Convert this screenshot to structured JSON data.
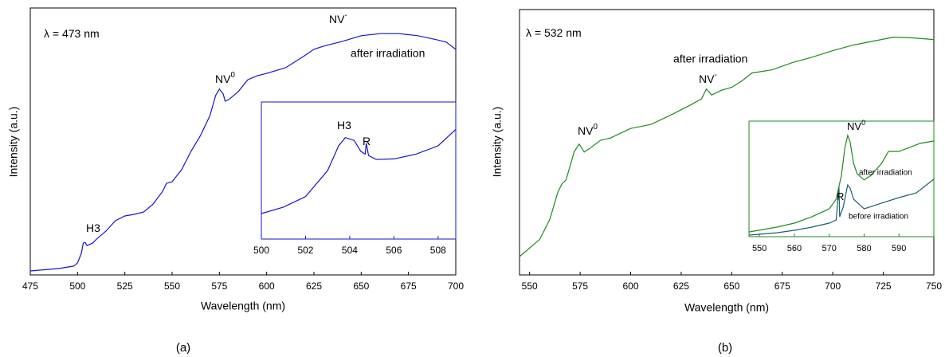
{
  "chart_data": [
    {
      "type": "line",
      "caption": "(a)",
      "x_label": "Wavelength (nm)",
      "y_label": "Intensity (a.u.)",
      "xlim": [
        475,
        700
      ],
      "ylim": [
        0,
        100
      ],
      "xticks": [
        475,
        500,
        525,
        550,
        575,
        600,
        625,
        650,
        675,
        700
      ],
      "annotations": [
        {
          "text": "λ = 473 nm",
          "color": "#1515d0"
        },
        {
          "text": "NV",
          "sup": "-"
        },
        {
          "text": "NV",
          "sup": "0"
        },
        {
          "text": "H3"
        }
      ],
      "series": [
        {
          "name": "after irradiation",
          "color": "#1515d0",
          "x": [
            475,
            490,
            498,
            500,
            502,
            503,
            504,
            505,
            506,
            508,
            510,
            515,
            520,
            525,
            530,
            535,
            540,
            545,
            547,
            550,
            555,
            560,
            565,
            570,
            573,
            575,
            577,
            578,
            580,
            585,
            590,
            595,
            600,
            610,
            620,
            625,
            630,
            640,
            650,
            660,
            670,
            680,
            690,
            695,
            700
          ],
          "values": [
            1.5,
            2.4,
            3.3,
            4.5,
            8.1,
            11.9,
            12.2,
            11.0,
            11.3,
            11.9,
            13.4,
            16.4,
            20.3,
            22.1,
            22.7,
            23.6,
            26.6,
            31.3,
            34.3,
            34.9,
            39.4,
            46.3,
            52.2,
            59.7,
            67.2,
            69.6,
            67.8,
            65.1,
            65.7,
            68.7,
            73.1,
            74.6,
            75.5,
            77.6,
            82.1,
            84.5,
            85.7,
            87.5,
            89.6,
            90.4,
            90.4,
            89.6,
            88.1,
            87.2,
            84.5
          ]
        }
      ]
    },
    {
      "type": "line",
      "color": "#1515d0",
      "xlim": [
        500,
        508.8
      ],
      "ylim": [
        0,
        100
      ],
      "xticks": [
        500,
        502,
        504,
        506,
        508
      ],
      "annotations": [
        {
          "text": "H3"
        },
        {
          "text": "R"
        }
      ],
      "series": [
        {
          "color": "#1515d0",
          "x": [
            500,
            501,
            502,
            503,
            503.5,
            503.8,
            504.2,
            504.5,
            504.7,
            504.75,
            504.85,
            505.2,
            506,
            507,
            508,
            508.8
          ],
          "values": [
            18.6,
            23.3,
            31,
            50,
            68,
            74,
            72,
            64,
            62,
            70,
            61,
            58,
            58.5,
            62,
            68,
            80
          ]
        }
      ]
    },
    {
      "type": "line",
      "caption": "(b)",
      "x_label": "Wavelength (nm)",
      "y_label": "Intensity (a.u.)",
      "xlim": [
        545,
        750
      ],
      "ylim": [
        0,
        100
      ],
      "xticks": [
        550,
        575,
        600,
        625,
        650,
        675,
        700,
        725,
        750
      ],
      "annotations": [
        {
          "text": "λ = 532 nm",
          "color": "#1f8a1f"
        },
        {
          "text": "NV",
          "sup": "-"
        },
        {
          "text": "NV",
          "sup": "0"
        }
      ],
      "series": [
        {
          "name": "after irradiation",
          "color": "#1f8a1f",
          "x": [
            545,
            555,
            560,
            564,
            566,
            568,
            570,
            572,
            574.5,
            577,
            580,
            585,
            590,
            600,
            610,
            620,
            630,
            635,
            637.5,
            640,
            645,
            650,
            655,
            660,
            665,
            670,
            680,
            690,
            700,
            710,
            720,
            730,
            740,
            750
          ],
          "values": [
            6.9,
            13.4,
            20.9,
            31.3,
            34.3,
            35.8,
            40.9,
            46.3,
            49.3,
            46.3,
            47.8,
            50.7,
            51.6,
            55.2,
            56.7,
            60.3,
            64.2,
            66.3,
            70.1,
            67.8,
            69.6,
            70.7,
            73.1,
            76.1,
            76.7,
            77.3,
            80.0,
            82.1,
            84.5,
            86.6,
            88.1,
            89.6,
            89.3,
            88.7
          ]
        }
      ]
    },
    {
      "type": "line",
      "color": "#1f8a1f",
      "xlim": [
        547,
        600
      ],
      "ylim": [
        0,
        100
      ],
      "xticks": [
        550,
        560,
        570,
        580,
        590
      ],
      "annotations": [
        {
          "text": "NV",
          "sup": "0"
        },
        {
          "text": "R"
        }
      ],
      "series": [
        {
          "name": "after irradiation",
          "color": "#1f8a1f",
          "x": [
            547,
            555,
            560,
            565,
            570,
            572,
            573.5,
            574.5,
            575.3,
            576,
            577,
            578,
            580,
            582,
            585,
            587,
            590,
            593,
            596,
            600
          ],
          "values": [
            4.1,
            8.3,
            11.7,
            17.2,
            24.1,
            32.4,
            53.1,
            77.2,
            87.6,
            82.1,
            63.4,
            54.5,
            49.0,
            53.1,
            63.4,
            73.8,
            73.8,
            77.2,
            80.7,
            82.8
          ]
        },
        {
          "name": "before irradiation",
          "color": "#1d5e6b",
          "x": [
            547,
            555,
            560,
            565,
            570,
            572,
            572.8,
            573,
            574,
            575.3,
            576,
            577,
            580,
            585,
            590,
            595,
            600
          ],
          "values": [
            1.4,
            3.4,
            5.5,
            8.3,
            11.7,
            14.5,
            42.8,
            17.2,
            25.5,
            44.8,
            42.1,
            32.4,
            24.1,
            29.0,
            33.8,
            37.9,
            49.7
          ]
        }
      ]
    }
  ]
}
